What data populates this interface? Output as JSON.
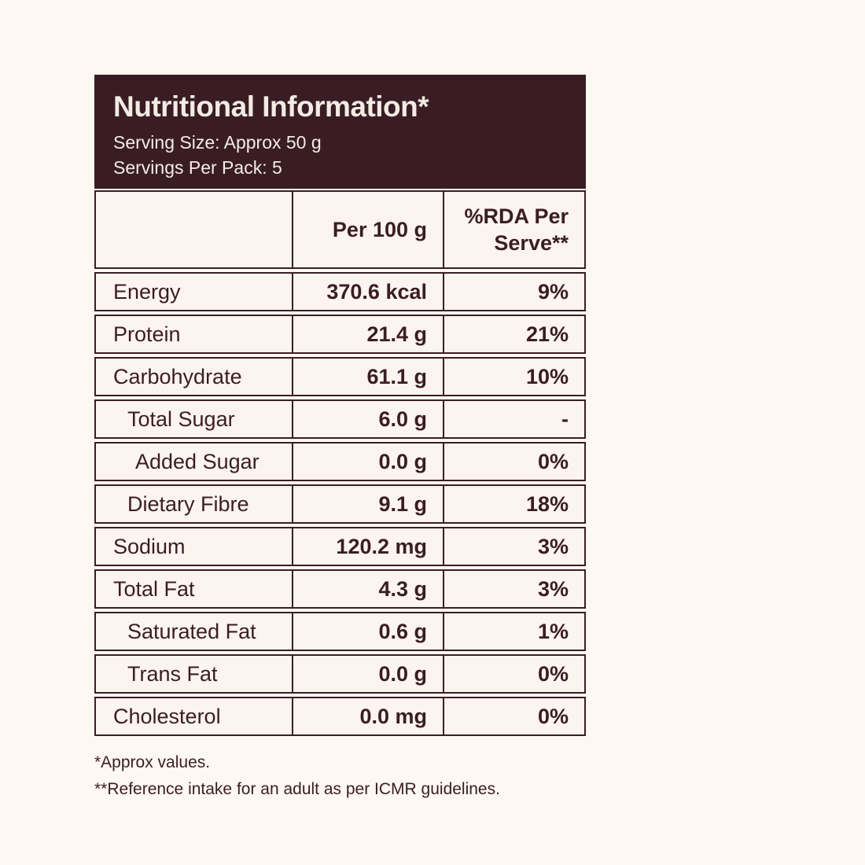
{
  "colors": {
    "page_background": "#fdf8f2",
    "cell_background": "#fcf4ee",
    "dark_maroon": "#3a1d24",
    "header_text": "#f3ebe5"
  },
  "header": {
    "title": "Nutritional Information*",
    "serving_size": "Serving Size: Approx 50 g",
    "servings_per_pack": "Servings Per Pack: 5"
  },
  "table": {
    "columns": [
      "",
      "Per 100 g",
      "%RDA Per Serve**"
    ],
    "rows": [
      {
        "label": "Energy",
        "indent": 0,
        "per_100g": "370.6 kcal",
        "rda_per_serve": "9%"
      },
      {
        "label": "Protein",
        "indent": 0,
        "per_100g": "21.4 g",
        "rda_per_serve": "21%"
      },
      {
        "label": "Carbohydrate",
        "indent": 0,
        "per_100g": "61.1 g",
        "rda_per_serve": "10%"
      },
      {
        "label": "Total Sugar",
        "indent": 1,
        "per_100g": "6.0 g",
        "rda_per_serve": "-"
      },
      {
        "label": "Added Sugar",
        "indent": 2,
        "per_100g": "0.0 g",
        "rda_per_serve": "0%"
      },
      {
        "label": "Dietary Fibre",
        "indent": 1,
        "per_100g": "9.1 g",
        "rda_per_serve": "18%"
      },
      {
        "label": "Sodium",
        "indent": 0,
        "per_100g": "120.2 mg",
        "rda_per_serve": "3%"
      },
      {
        "label": "Total Fat",
        "indent": 0,
        "per_100g": "4.3 g",
        "rda_per_serve": "3%"
      },
      {
        "label": "Saturated Fat",
        "indent": 1,
        "per_100g": "0.6 g",
        "rda_per_serve": "1%"
      },
      {
        "label": "Trans Fat",
        "indent": 1,
        "per_100g": "0.0 g",
        "rda_per_serve": "0%"
      },
      {
        "label": "Cholesterol",
        "indent": 0,
        "per_100g": "0.0 mg",
        "rda_per_serve": "0%"
      }
    ]
  },
  "footnotes": [
    "*Approx values.",
    "**Reference intake for an adult as per ICMR guidelines."
  ]
}
